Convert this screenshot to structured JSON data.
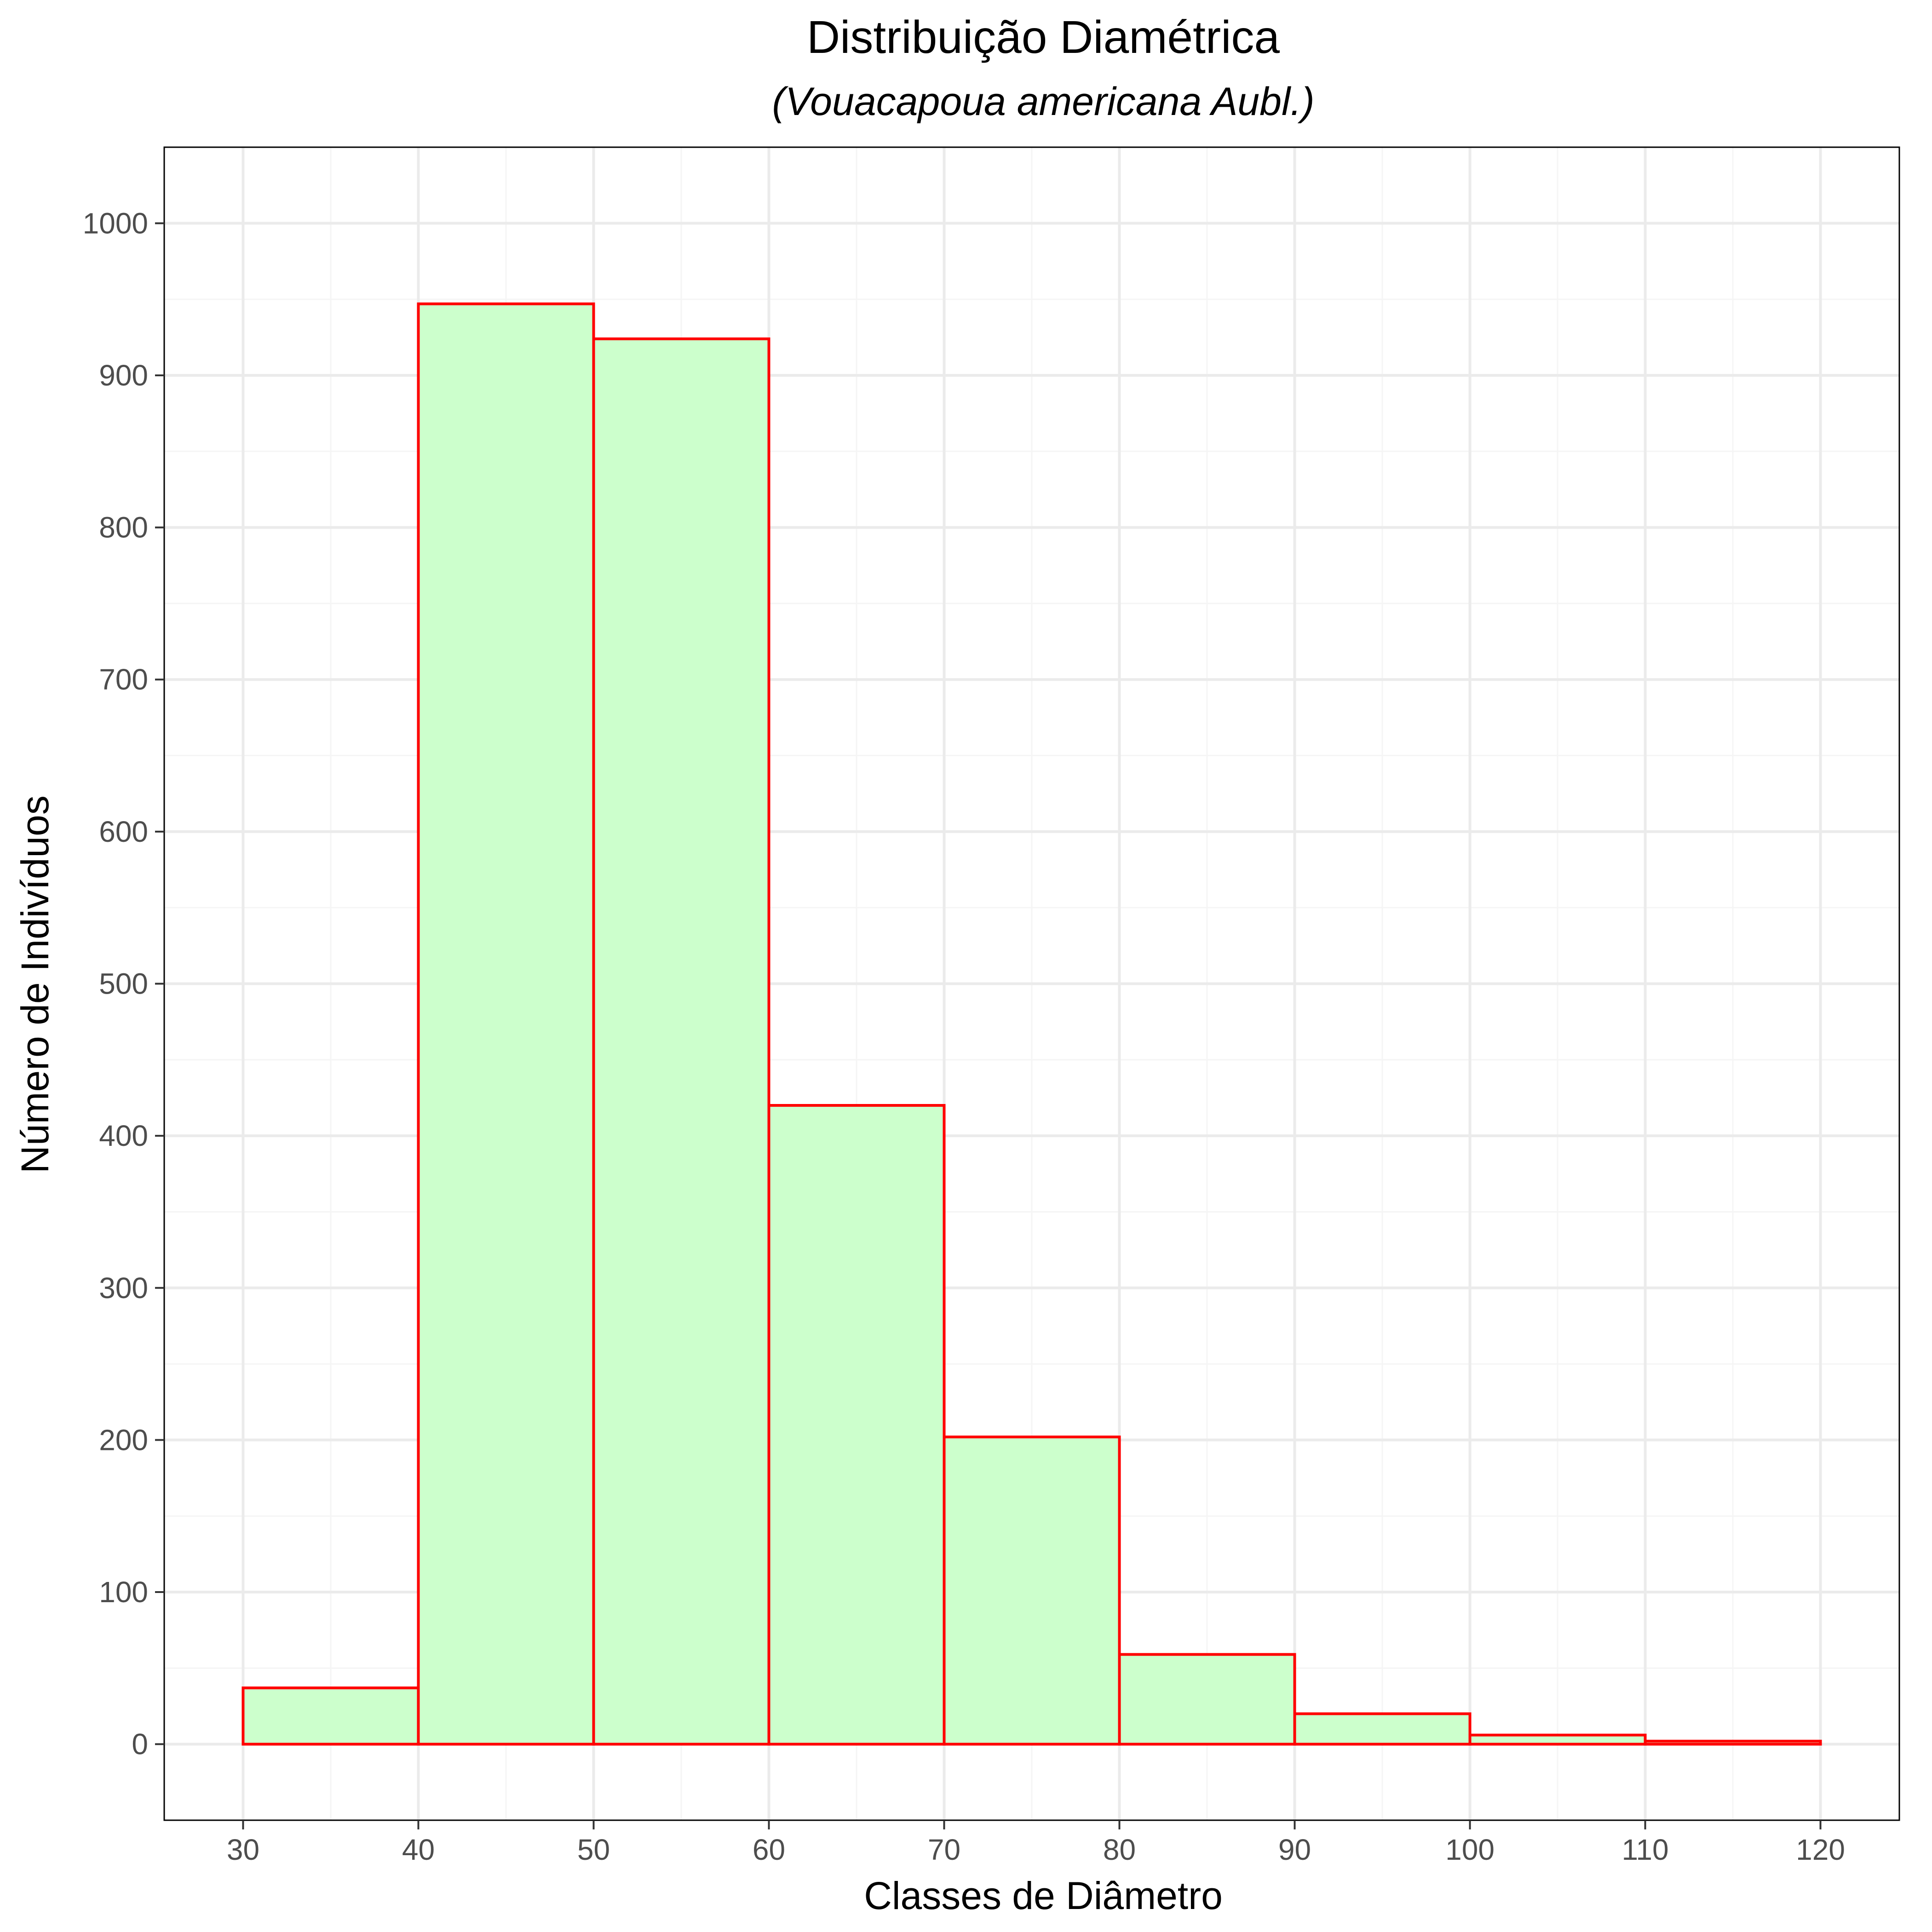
{
  "chart_data": {
    "type": "bar",
    "subtype": "histogram",
    "title": "Distribuição Diamétrica",
    "subtitle": "(Vouacapoua americana Aubl.)",
    "xlabel": "Classes de Diâmetro",
    "ylabel": "Número de Indivíduos",
    "bin_edges": [
      30,
      40,
      50,
      60,
      70,
      80,
      90,
      100,
      110,
      120
    ],
    "values": [
      37,
      947,
      924,
      420,
      202,
      59,
      20,
      6,
      2
    ],
    "xlim": [
      25.5,
      124.5
    ],
    "ylim": [
      -50,
      1050
    ],
    "xticks": [
      30,
      40,
      50,
      60,
      70,
      80,
      90,
      100,
      110,
      120
    ],
    "yticks": [
      0,
      100,
      200,
      300,
      400,
      500,
      600,
      700,
      800,
      900,
      1000
    ],
    "grid": true,
    "legend": "none",
    "colors": {
      "bar_fill": "#ccffcc",
      "bar_outline": "#ff0000",
      "grid_major": "#ebebeb",
      "grid_minor": "#f5f5f5",
      "panel_border": "#000000"
    }
  }
}
